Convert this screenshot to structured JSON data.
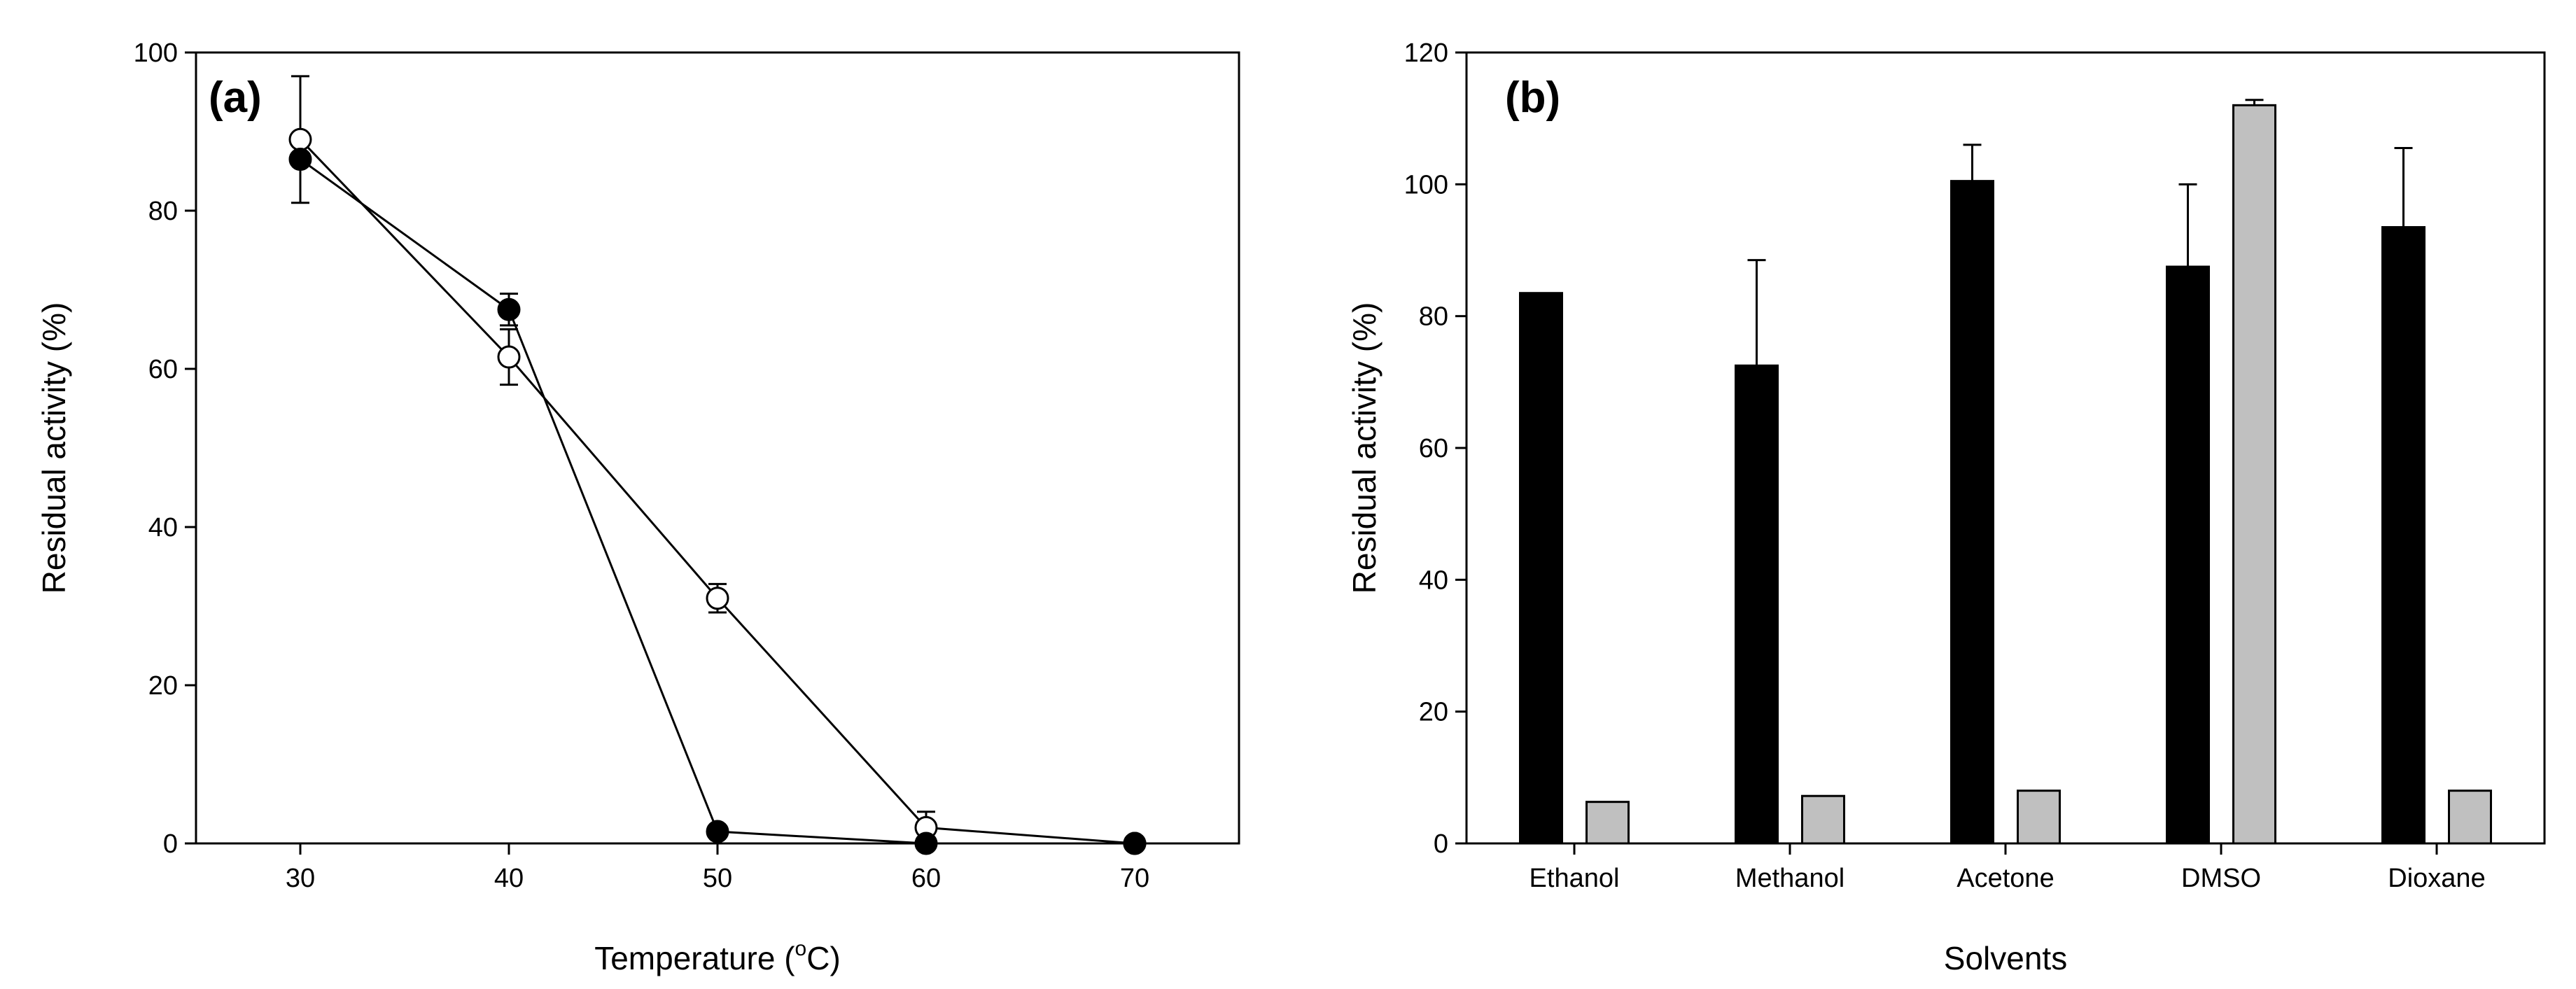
{
  "chart_data": [
    {
      "panel": "(a)",
      "type": "line",
      "title": "",
      "xlabel": "Temperature (",
      "xlabel_superscript": "o",
      "xlabel_suffix": "C)",
      "ylabel": "Residual activity (%)",
      "xlim": [
        25,
        75
      ],
      "ylim": [
        0,
        100
      ],
      "xticks": [
        30,
        40,
        50,
        60,
        70
      ],
      "yticks": [
        0,
        20,
        40,
        60,
        80,
        100
      ],
      "grid": false,
      "series": [
        {
          "name": "filled circles",
          "marker": "filled-circle",
          "x": [
            30,
            40,
            50,
            60,
            70
          ],
          "y": [
            86.5,
            67.5,
            1.5,
            0,
            0
          ],
          "err": [
            0,
            2,
            0,
            0,
            0
          ]
        },
        {
          "name": "open circles",
          "marker": "open-circle",
          "x": [
            30,
            40,
            50,
            60,
            70
          ],
          "y": [
            89,
            61.5,
            31,
            2,
            0
          ],
          "err": [
            8,
            3.5,
            1.8,
            2,
            0
          ]
        }
      ]
    },
    {
      "panel": "(b)",
      "type": "bar",
      "title": "",
      "xlabel": "Solvents",
      "ylabel": "Residual activity (%)",
      "ylim": [
        0,
        120
      ],
      "yticks": [
        0,
        20,
        40,
        60,
        80,
        100,
        120
      ],
      "grid": false,
      "categories": [
        "Ethanol",
        "Methanol",
        "Acetone",
        "DMSO",
        "Dioxane"
      ],
      "series": [
        {
          "name": "black bars",
          "color": "#000000",
          "values": [
            83.5,
            72.5,
            100.5,
            87.5,
            93.5
          ],
          "err": [
            0,
            16,
            5.5,
            12.5,
            12
          ]
        },
        {
          "name": "grey bars",
          "color": "#c0c0c0",
          "values": [
            6.3,
            7.2,
            8,
            112,
            8
          ],
          "err": [
            0,
            0,
            0,
            0.8,
            0
          ]
        }
      ]
    }
  ]
}
